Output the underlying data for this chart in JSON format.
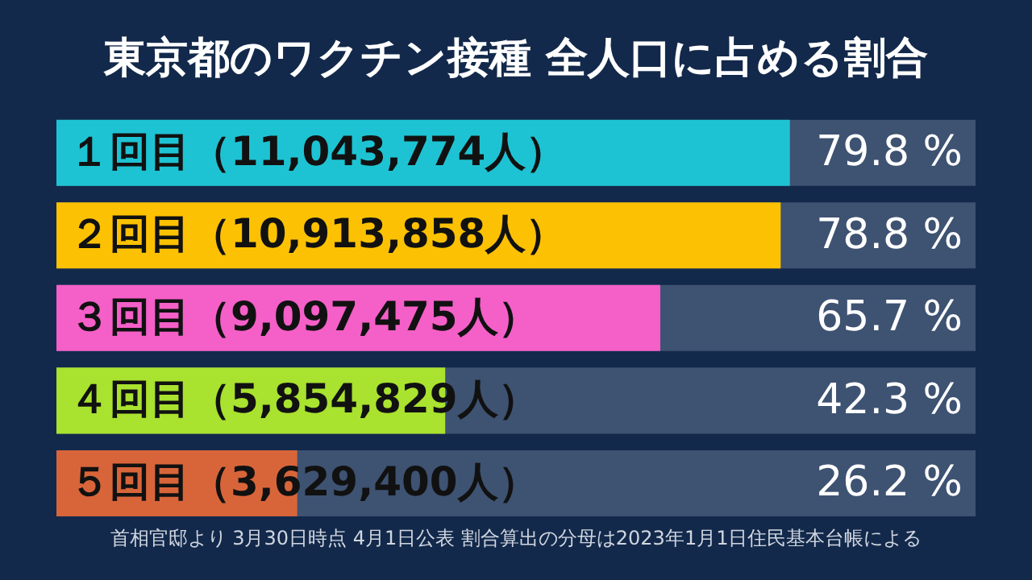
{
  "chart_data": {
    "type": "bar",
    "orientation": "horizontal",
    "title": "東京都のワクチン接種 全人口に占める割合",
    "categories": [
      "１回目（11,043,774人）",
      "２回目（10,913,858人）",
      "３回目（9,097,475人）",
      "４回目（5,854,829人）",
      "５回目（3,629,400人）"
    ],
    "values": [
      79.8,
      78.8,
      65.7,
      42.3,
      26.2
    ],
    "colors": [
      "#1ec3d3",
      "#fcc102",
      "#f55fc8",
      "#a9e22f",
      "#d8653a"
    ],
    "value_labels": [
      "79.8 %",
      "78.8 %",
      "65.7 %",
      "42.3 %",
      "26.2 %"
    ],
    "xlim": [
      0,
      100
    ],
    "tick_labels": false,
    "annotations": [
      "首相官邸より 3月30日時点 4月1日公表 割合算出の分母は2023年1月1日住民基本台帳による"
    ]
  }
}
